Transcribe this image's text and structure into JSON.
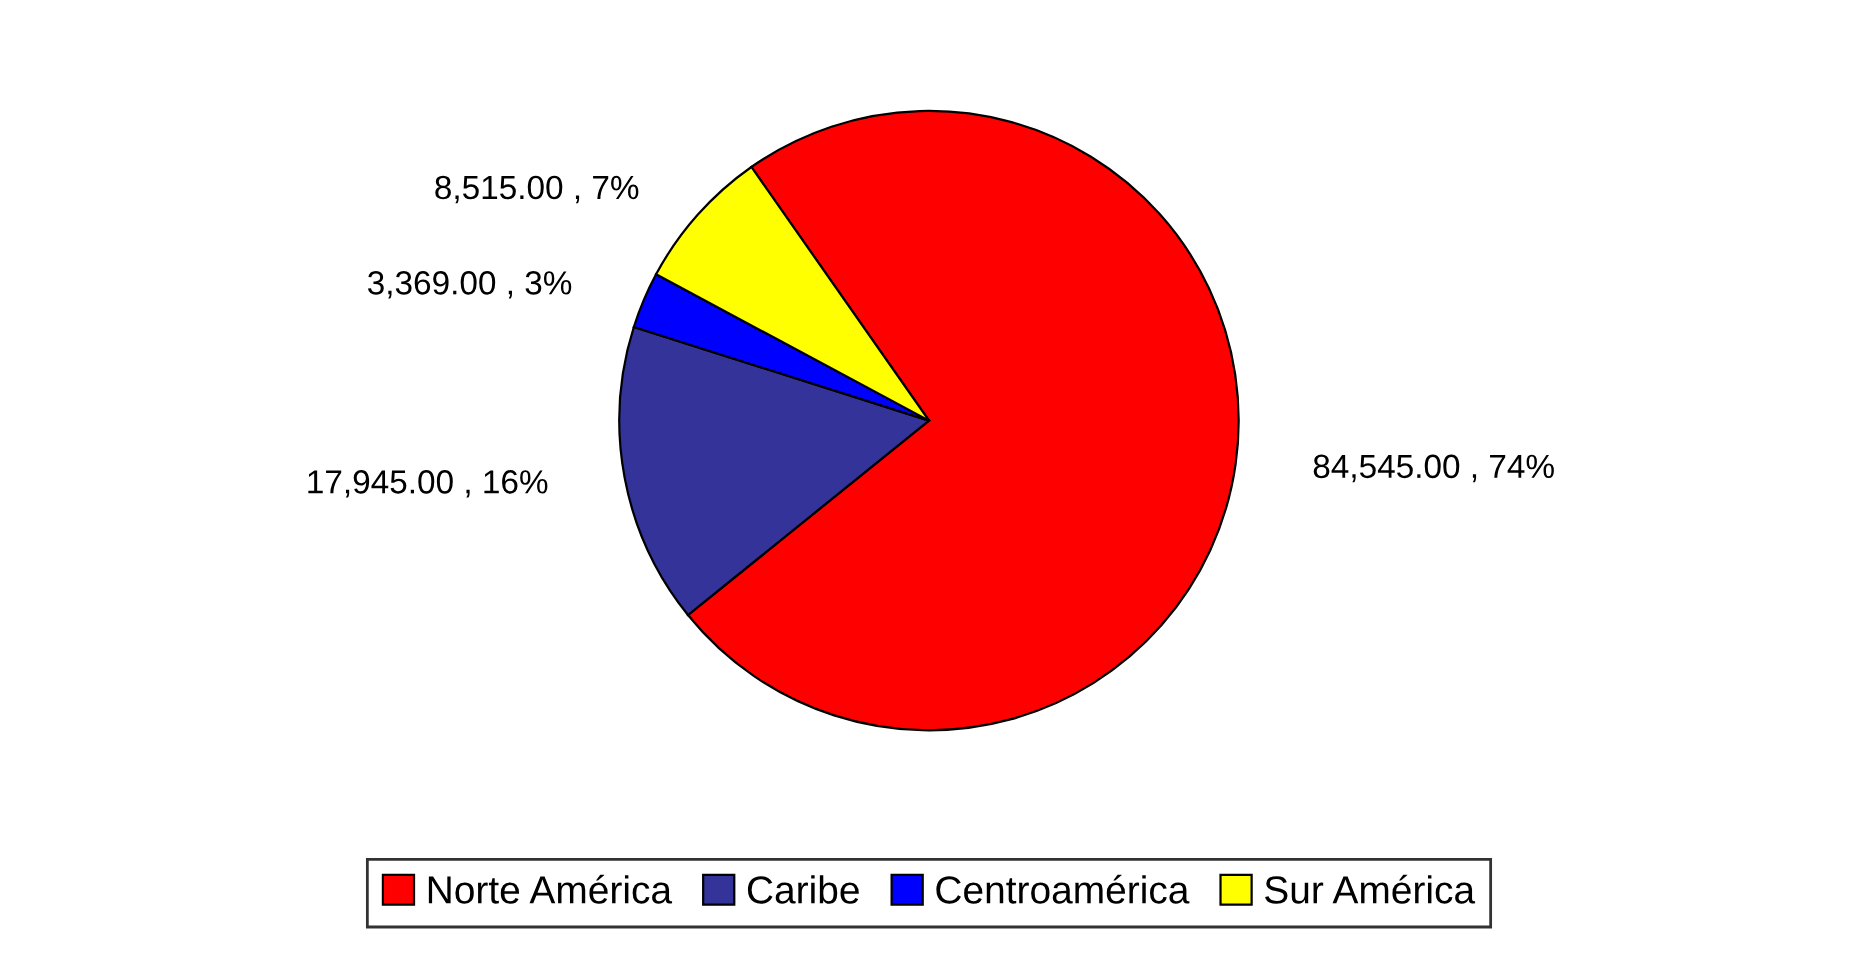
{
  "chart_data": {
    "type": "pie",
    "categories": [
      "Norte América",
      "Caribe",
      "Centroamérica",
      "Sur América"
    ],
    "values": [
      84545,
      17945,
      3369,
      8515
    ],
    "colors": [
      "#ff0000",
      "#333399",
      "#0000ff",
      "#ffff00"
    ],
    "value_labels": [
      "84,545.00 , 74%",
      "17,945.00 , 16%",
      "3,369.00 , 3%",
      "8,515.00 , 7%"
    ],
    "legend": "bottom"
  }
}
